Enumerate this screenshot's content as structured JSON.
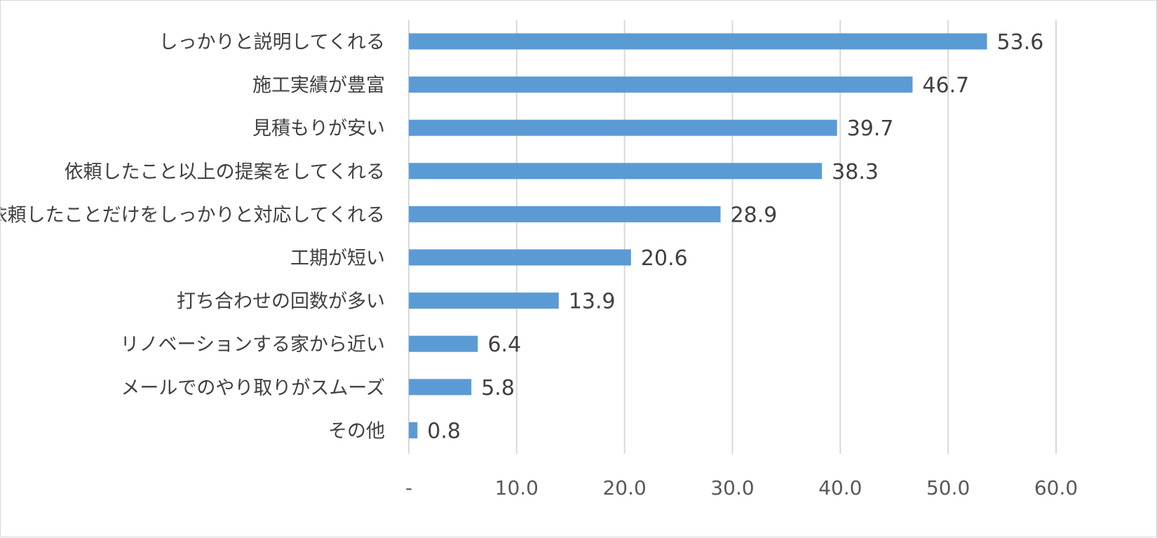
{
  "chart_data": {
    "type": "bar",
    "orientation": "horizontal",
    "title": "",
    "xlabel": "",
    "ylabel": "",
    "categories": [
      "しっかりと説明してくれる",
      "施工実績が豊富",
      "見積もりが安い",
      "依頼したこと以上の提案をしてくれる",
      "依頼したことだけをしっかりと対応してくれる",
      "工期が短い",
      "打ち合わせの回数が多い",
      "リノベーションする家から近い",
      "メールでのやり取りがスムーズ",
      "その他"
    ],
    "values": [
      53.6,
      46.7,
      39.7,
      38.3,
      28.9,
      20.6,
      13.9,
      6.4,
      5.8,
      0.8
    ],
    "value_labels": [
      "53.6",
      "46.7",
      "39.7",
      "38.3",
      "28.9",
      "20.6",
      "13.9",
      "6.4",
      "5.8",
      "0.8"
    ],
    "xlim": [
      0,
      60
    ],
    "x_ticks": [
      0,
      10,
      20,
      30,
      40,
      50,
      60
    ],
    "x_tick_labels": [
      "-",
      "10.0",
      "20.0",
      "30.0",
      "40.0",
      "50.0",
      "60.0"
    ],
    "grid": "vertical",
    "legend": "none",
    "bar_color": "#5b9bd5",
    "grid_color": "#d9d9d9",
    "text_color": "#404040"
  }
}
